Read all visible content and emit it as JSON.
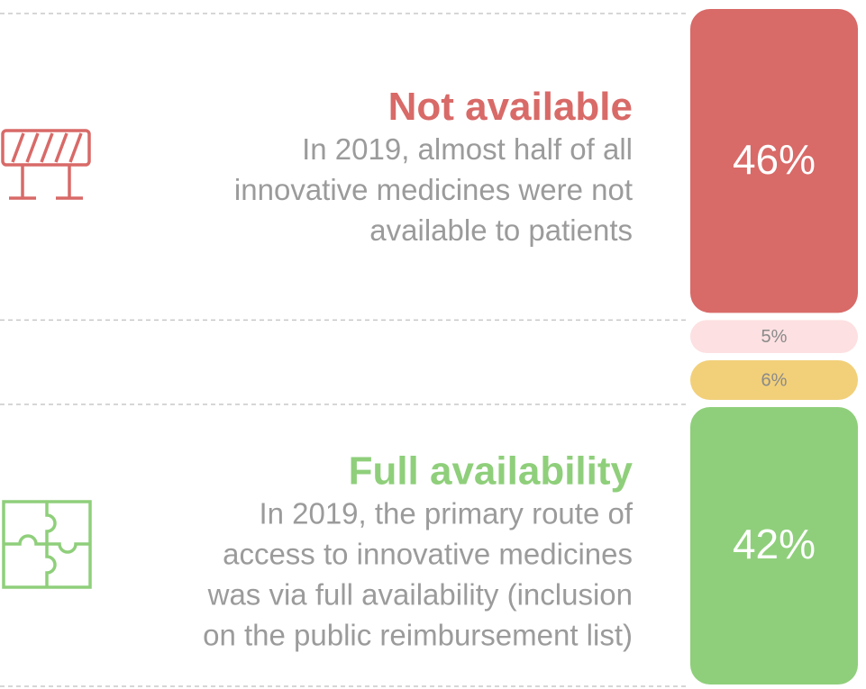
{
  "chart_data": {
    "type": "stacked_bar",
    "values": [
      46,
      5,
      6,
      42
    ],
    "value_labels": [
      "46%",
      "5%",
      "6%",
      "42%"
    ],
    "colors": [
      "#d86a68",
      "#fde0e1",
      "#f2d07a",
      "#8fcf7b"
    ],
    "annotations": [
      {
        "title": "Not available",
        "color": "#d86a68",
        "lines": [
          "In 2019, almost half of all",
          "innovative medicines were not",
          "available to patients"
        ]
      },
      {
        "title": "Full availability",
        "color": "#8fcf7b",
        "lines": [
          "In 2019, the primary route of",
          "access to innovative medicines",
          "was via full availability (inclusion",
          "on the public reimbursement list)"
        ]
      }
    ]
  }
}
